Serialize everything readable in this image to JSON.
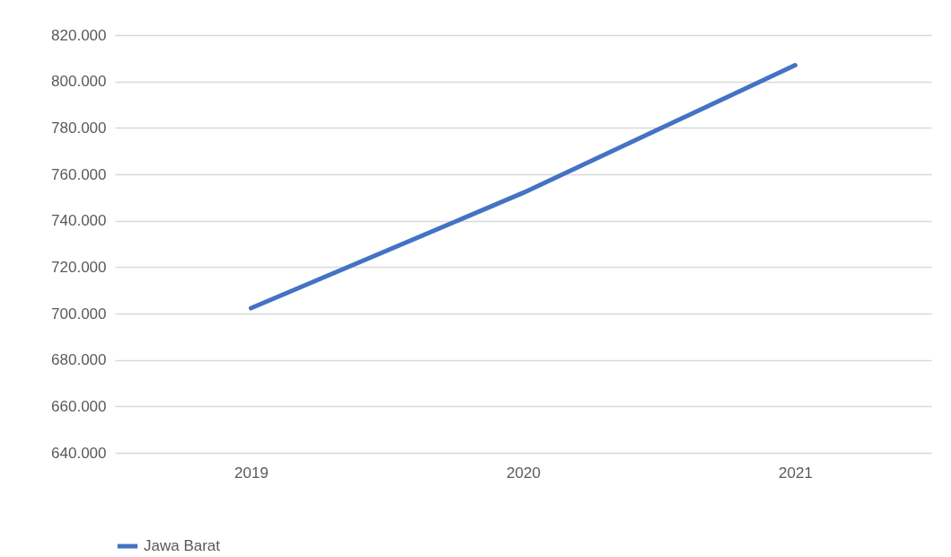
{
  "chart_data": {
    "type": "line",
    "categories": [
      "2019",
      "2020",
      "2021"
    ],
    "series": [
      {
        "name": "Jawa Barat",
        "color": "#4472c4",
        "values": [
          702300,
          752000,
          807000
        ]
      }
    ],
    "ylim": [
      640000,
      820000
    ],
    "yticks": [
      {
        "value": 640000,
        "label": "640.000"
      },
      {
        "value": 660000,
        "label": "660.000"
      },
      {
        "value": 680000,
        "label": "680.000"
      },
      {
        "value": 700000,
        "label": "700.000"
      },
      {
        "value": 720000,
        "label": "720.000"
      },
      {
        "value": 740000,
        "label": "740.000"
      },
      {
        "value": 760000,
        "label": "760.000"
      },
      {
        "value": 780000,
        "label": "780.000"
      },
      {
        "value": 800000,
        "label": "800.000"
      },
      {
        "value": 820000,
        "label": "820.000"
      }
    ],
    "grid": "y",
    "legend": "bottom",
    "marker": "none",
    "line_style": "solid"
  }
}
